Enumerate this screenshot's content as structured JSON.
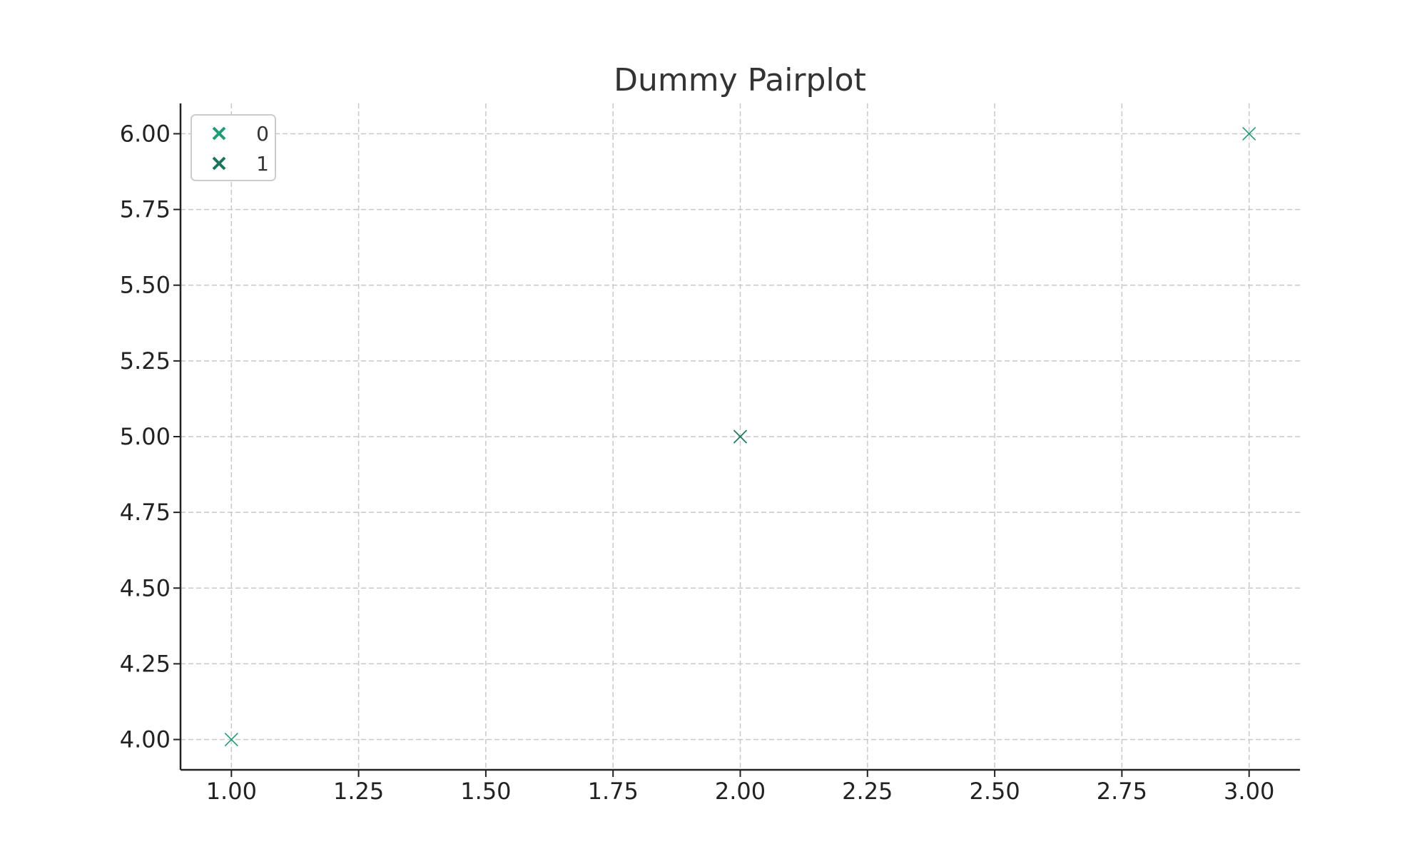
{
  "chart_data": {
    "type": "scatter",
    "title": "Dummy Pairplot",
    "xlabel": "",
    "ylabel": "",
    "xlim": [
      0.9,
      3.1
    ],
    "ylim": [
      3.9,
      6.1
    ],
    "xticks": [
      1.0,
      1.25,
      1.5,
      1.75,
      2.0,
      2.25,
      2.5,
      2.75,
      3.0
    ],
    "xtick_labels": [
      "1.00",
      "1.25",
      "1.50",
      "1.75",
      "2.00",
      "2.25",
      "2.50",
      "2.75",
      "3.00"
    ],
    "yticks": [
      4.0,
      4.25,
      4.5,
      4.75,
      5.0,
      5.25,
      5.5,
      5.75,
      6.0
    ],
    "ytick_labels": [
      "4.00",
      "4.25",
      "4.50",
      "4.75",
      "5.00",
      "5.25",
      "5.50",
      "5.75",
      "6.00"
    ],
    "grid": true,
    "legend_position": "top-left",
    "marker": "x",
    "series": [
      {
        "name": "0",
        "color": "#1b9e77",
        "x": [
          1,
          3
        ],
        "y": [
          4,
          6
        ]
      },
      {
        "name": "1",
        "color": "#19765e",
        "x": [
          2
        ],
        "y": [
          5
        ]
      }
    ]
  }
}
